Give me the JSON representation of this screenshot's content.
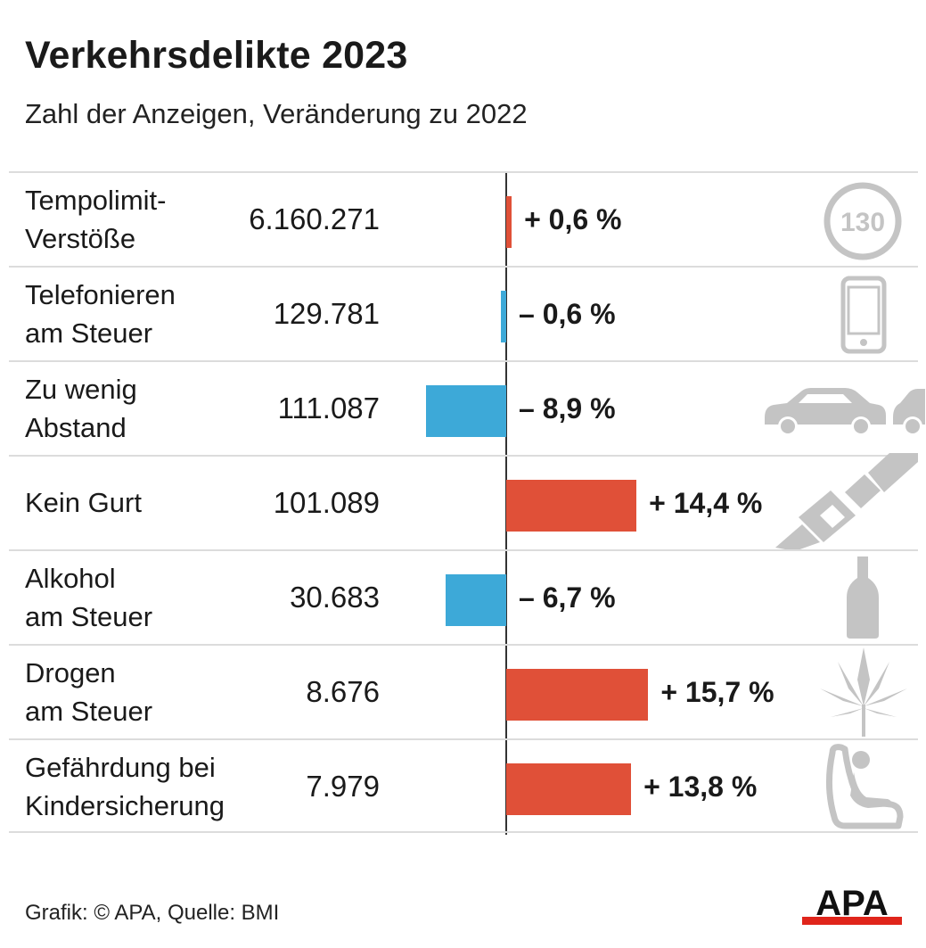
{
  "header": {
    "title": "Verkehrsdelikte 2023",
    "subtitle": "Zahl der Anzeigen, Veränderung zu 2022"
  },
  "footer": {
    "source": "Grafik: © APA, Quelle: BMI",
    "logo_text": "APA"
  },
  "colors": {
    "increase": "#e05038",
    "decrease": "#3da9d8",
    "icon": "#c4c4c4"
  },
  "chart_data": {
    "type": "bar",
    "title": "Verkehrsdelikte 2023",
    "subtitle": "Zahl der Anzeigen, Veränderung zu 2022",
    "categories": [
      "Tempolimit-\nVerstöße",
      "Telefonieren\nam Steuer",
      "Zu wenig\nAbstand",
      "Kein Gurt",
      "Alkohol\nam Steuer",
      "Drogen\nam Steuer",
      "Gefährdung bei\nKindersicherung"
    ],
    "counts": [
      "6.160.271",
      "129.781",
      "111.087",
      "101.089",
      "30.683",
      "8.676",
      "7.979"
    ],
    "values": [
      0.6,
      -0.6,
      -8.9,
      14.4,
      -6.7,
      15.7,
      13.8
    ],
    "value_labels": [
      "+ 0,6 %",
      "– 0,6 %",
      "– 8,9 %",
      "+ 14,4 %",
      "– 6,7 %",
      "+ 15,7 %",
      "+ 13,8 %"
    ],
    "icons": [
      "speed-limit-130-icon",
      "smartphone-icon",
      "cars-icon",
      "seatbelt-icon",
      "bottle-icon",
      "cannabis-leaf-icon",
      "child-seat-icon"
    ],
    "speed_sign_text": "130",
    "xlim": [
      -10,
      16
    ]
  }
}
